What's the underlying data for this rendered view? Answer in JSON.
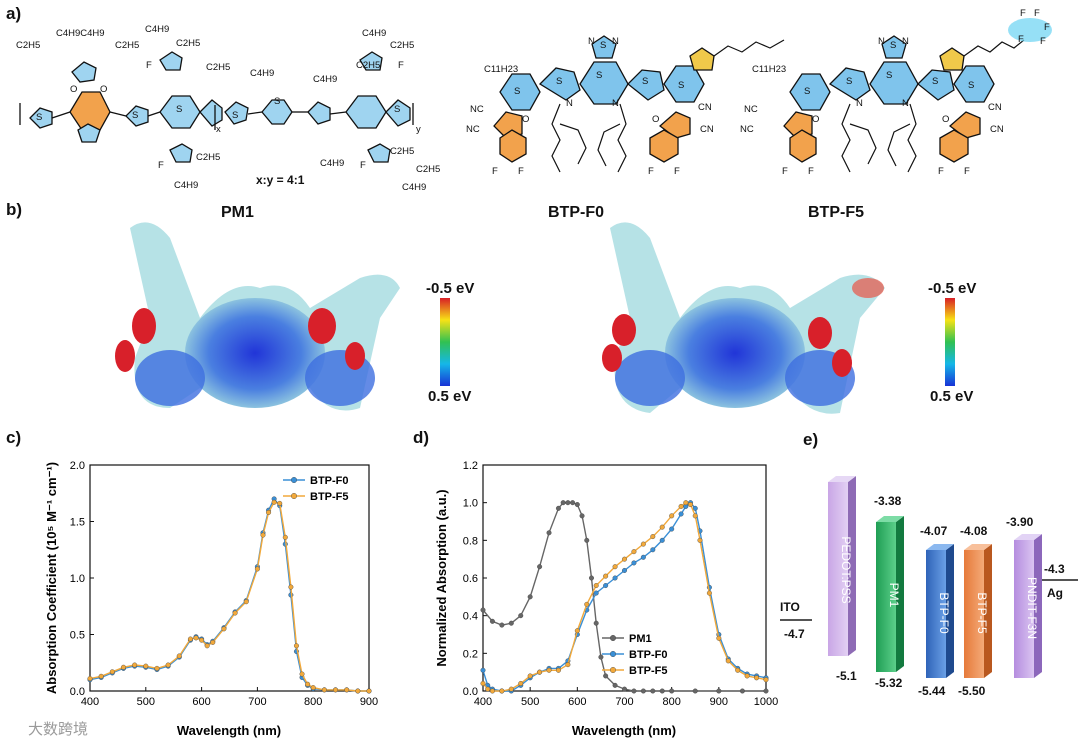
{
  "panels": {
    "a": "a)",
    "b": "b)",
    "c": "c)",
    "d": "d)",
    "e": "e)"
  },
  "structures": {
    "pm1": {
      "ratio": "x:y = 4:1",
      "labels": [
        "C2H5",
        "C4H9C4H9",
        "C2H5",
        "C4H9",
        "C2H5",
        "C2H5",
        "C4H9",
        "C4H9",
        "C2H5",
        "C4H9",
        "C2H5",
        "O",
        "O",
        "S",
        "S",
        "S",
        "S",
        "S",
        "S",
        "F",
        "F",
        "F",
        "F",
        "x",
        "y",
        "C2H5",
        "C4H9",
        "C4H9",
        "C2H5",
        "C2H5",
        "C4H9"
      ]
    },
    "btp_f0": {
      "labels": [
        "C11H23",
        "S",
        "N",
        "N",
        "S",
        "S",
        "S",
        "S",
        "S",
        "N",
        "N",
        "NC",
        "NC",
        "CN",
        "CN",
        "O",
        "O",
        "F",
        "F",
        "F",
        "F"
      ]
    },
    "btp_f5": {
      "labels": [
        "C11H23",
        "S",
        "N",
        "N",
        "S",
        "S",
        "S",
        "S",
        "S",
        "N",
        "N",
        "NC",
        "NC",
        "CN",
        "CN",
        "O",
        "O",
        "F",
        "F",
        "F",
        "F",
        "F",
        "F",
        "F",
        "F",
        "F"
      ]
    }
  },
  "esp": {
    "titles": [
      "PM1",
      "BTP-F0",
      "BTP-F5"
    ],
    "colorbar": {
      "top": "-0.5 eV",
      "bottom": "0.5 eV"
    }
  },
  "chart_data": [
    {
      "type": "line",
      "panel": "c",
      "xlabel": "Wavelength (nm)",
      "ylabel": "Absorption Coefficient (10⁵ M⁻¹ cm⁻¹)",
      "xlim": [
        400,
        900
      ],
      "ylim": [
        0.0,
        2.0
      ],
      "xticks": [
        "400",
        "500",
        "600",
        "700",
        "800",
        "900"
      ],
      "yticks": [
        "0.0",
        "0.5",
        "1.0",
        "1.5",
        "2.0"
      ],
      "legend": "top-right",
      "series": [
        {
          "name": "BTP-F0",
          "color": "#3a8fd6",
          "x": [
            400,
            420,
            440,
            460,
            480,
            500,
            520,
            540,
            560,
            580,
            590,
            600,
            610,
            620,
            640,
            660,
            680,
            700,
            710,
            720,
            730,
            740,
            750,
            760,
            770,
            780,
            790,
            800,
            820,
            840,
            860,
            880,
            900
          ],
          "y": [
            0.1,
            0.12,
            0.16,
            0.2,
            0.22,
            0.21,
            0.19,
            0.22,
            0.3,
            0.45,
            0.48,
            0.46,
            0.41,
            0.44,
            0.56,
            0.7,
            0.8,
            1.1,
            1.4,
            1.6,
            1.7,
            1.64,
            1.3,
            0.85,
            0.35,
            0.12,
            0.05,
            0.02,
            0.01,
            0.01,
            0.01,
            0.0,
            0.0
          ]
        },
        {
          "name": "BTP-F5",
          "color": "#f2a93b",
          "x": [
            400,
            420,
            440,
            460,
            480,
            500,
            520,
            540,
            560,
            580,
            590,
            600,
            610,
            620,
            640,
            660,
            680,
            700,
            710,
            720,
            730,
            740,
            750,
            760,
            770,
            780,
            790,
            800,
            820,
            840,
            860,
            880,
            900
          ],
          "y": [
            0.11,
            0.13,
            0.17,
            0.21,
            0.23,
            0.22,
            0.2,
            0.23,
            0.31,
            0.46,
            0.47,
            0.45,
            0.4,
            0.43,
            0.55,
            0.69,
            0.79,
            1.08,
            1.38,
            1.58,
            1.67,
            1.66,
            1.36,
            0.92,
            0.4,
            0.15,
            0.06,
            0.03,
            0.01,
            0.01,
            0.01,
            0.0,
            0.0
          ]
        }
      ]
    },
    {
      "type": "line",
      "panel": "d",
      "xlabel": "Wavelength (nm)",
      "ylabel": "Normalized Absorption (a.u.)",
      "xlim": [
        400,
        1000
      ],
      "ylim": [
        0.0,
        1.2
      ],
      "xticks": [
        "400",
        "500",
        "600",
        "700",
        "800",
        "900",
        "1000"
      ],
      "yticks": [
        "0.0",
        "0.2",
        "0.4",
        "0.6",
        "0.8",
        "1.0",
        "1.2"
      ],
      "legend": "bottom-center",
      "series": [
        {
          "name": "PM1",
          "color": "#666666",
          "x": [
            400,
            420,
            440,
            460,
            480,
            500,
            520,
            540,
            560,
            570,
            580,
            590,
            600,
            610,
            620,
            630,
            640,
            650,
            660,
            680,
            700,
            720,
            740,
            760,
            780,
            800,
            850,
            900,
            950,
            1000
          ],
          "y": [
            0.43,
            0.37,
            0.35,
            0.36,
            0.4,
            0.5,
            0.66,
            0.84,
            0.97,
            1.0,
            1.0,
            1.0,
            0.99,
            0.93,
            0.8,
            0.6,
            0.36,
            0.18,
            0.08,
            0.03,
            0.01,
            0.0,
            0.0,
            0.0,
            0.0,
            0.0,
            0.0,
            0.0,
            0.0,
            0.0
          ]
        },
        {
          "name": "BTP-F0",
          "color": "#3a8fd6",
          "x": [
            400,
            410,
            420,
            440,
            460,
            480,
            500,
            520,
            540,
            560,
            580,
            600,
            620,
            640,
            660,
            680,
            700,
            720,
            740,
            760,
            780,
            800,
            820,
            830,
            840,
            850,
            860,
            880,
            900,
            920,
            940,
            960,
            980,
            1000
          ],
          "y": [
            0.11,
            0.03,
            0.01,
            0.0,
            0.0,
            0.03,
            0.07,
            0.1,
            0.12,
            0.12,
            0.16,
            0.3,
            0.43,
            0.52,
            0.56,
            0.6,
            0.64,
            0.68,
            0.71,
            0.75,
            0.8,
            0.86,
            0.94,
            0.98,
            1.0,
            0.97,
            0.85,
            0.55,
            0.3,
            0.17,
            0.12,
            0.09,
            0.08,
            0.07
          ]
        },
        {
          "name": "BTP-F5",
          "color": "#f2a93b",
          "x": [
            400,
            410,
            420,
            440,
            460,
            480,
            500,
            520,
            540,
            560,
            580,
            600,
            620,
            640,
            660,
            680,
            700,
            720,
            740,
            760,
            780,
            800,
            820,
            830,
            840,
            850,
            860,
            880,
            900,
            920,
            940,
            960,
            980,
            1000
          ],
          "y": [
            0.04,
            0.01,
            0.0,
            0.0,
            0.01,
            0.04,
            0.08,
            0.1,
            0.11,
            0.11,
            0.14,
            0.32,
            0.46,
            0.56,
            0.61,
            0.66,
            0.7,
            0.74,
            0.78,
            0.82,
            0.87,
            0.93,
            0.98,
            1.0,
            0.99,
            0.93,
            0.8,
            0.52,
            0.28,
            0.16,
            0.11,
            0.08,
            0.07,
            0.06
          ]
        }
      ]
    }
  ],
  "energy_diagram": {
    "ito": {
      "name": "ITO",
      "value": "-4.7"
    },
    "ag": {
      "name": "Ag",
      "value": "-4.3"
    },
    "materials": [
      {
        "name": "PEDOT:PSS",
        "top": "",
        "bottom": "-5.1",
        "color": "#c9a6e6"
      },
      {
        "name": "PM1",
        "top": "-3.38",
        "bottom": "-5.32",
        "color": "#2fb56a"
      },
      {
        "name": "BTP-F0",
        "top": "-4.07",
        "bottom": "-5.44",
        "color": "#3a7bd0"
      },
      {
        "name": "BTP-F5",
        "top": "-4.08",
        "bottom": "-5.50",
        "color": "#ee8a4f"
      },
      {
        "name": "PNDIT-F3N",
        "top": "-3.90",
        "bottom": "",
        "color": "#c7a4e8"
      }
    ]
  },
  "watermark": "大数跨境"
}
